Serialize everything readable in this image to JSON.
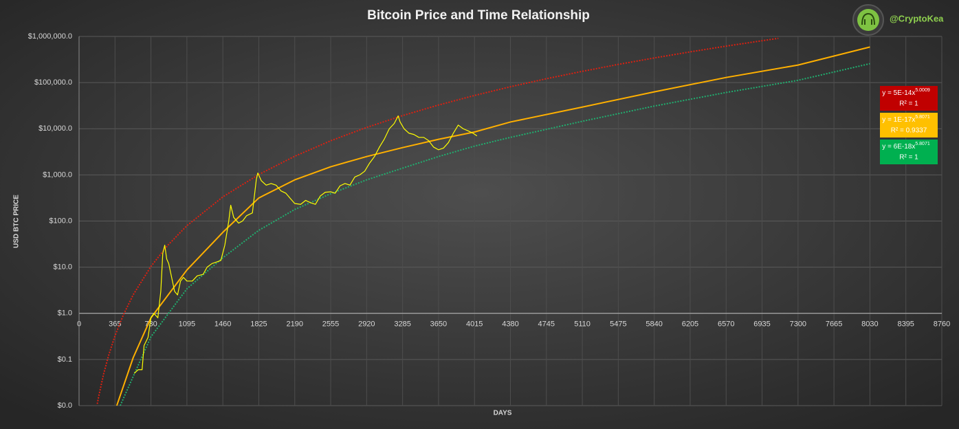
{
  "chart_data": {
    "type": "line",
    "title": "Bitcoin Price and Time Relationship",
    "handle": "@CryptoKea",
    "xlabel": "DAYS",
    "ylabel": "USD BTC PRICE",
    "log_y": true,
    "grid": true,
    "xlim": [
      0,
      8760
    ],
    "xticks": [
      0,
      365,
      730,
      1095,
      1460,
      1825,
      2190,
      2555,
      2920,
      3285,
      3650,
      4015,
      4380,
      4745,
      5110,
      5475,
      5840,
      6205,
      6570,
      6935,
      7300,
      7665,
      8030,
      8395,
      8760
    ],
    "ylim": [
      0.01,
      1000000
    ],
    "yticks": [
      {
        "value": 0.01,
        "label": "$0.0"
      },
      {
        "value": 0.1,
        "label": "$0.1"
      },
      {
        "value": 1,
        "label": "$1.0"
      },
      {
        "value": 10,
        "label": "$10.0"
      },
      {
        "value": 100,
        "label": "$100.0"
      },
      {
        "value": 1000,
        "label": "$1,000.0"
      },
      {
        "value": 10000,
        "label": "$10,000.0"
      },
      {
        "value": 100000,
        "label": "$100,000.0"
      },
      {
        "value": 1000000,
        "label": "$1,000,000.0"
      }
    ],
    "series": [
      {
        "color": "#e02010",
        "dashed": true,
        "width": 2,
        "x": [
          185,
          200,
          250,
          300,
          365,
          450,
          550,
          730,
          900,
          1095,
          1460,
          1825,
          2190,
          2555,
          2920,
          3285,
          3650,
          4015,
          4380,
          4745,
          5110,
          5475,
          5840,
          6205,
          6570,
          6935,
          7100
        ],
        "values": [
          0.0109,
          0.0161,
          0.0491,
          0.122,
          0.326,
          0.927,
          2.53,
          10.4,
          29.7,
          79.3,
          334,
          1019,
          2535,
          5483,
          10690,
          19280,
          32660,
          52600,
          81300,
          121300,
          175400,
          247700,
          342000,
          463000,
          617000,
          807000,
          910000
        ]
      },
      {
        "color": "#ffb000",
        "dashed": false,
        "width": 2,
        "x": [
          383,
          550,
          730,
          1095,
          1460,
          1825,
          2190,
          2555,
          2920,
          3285,
          3650,
          4015,
          4380,
          5110,
          5840,
          6570,
          7300,
          8030
        ],
        "values": [
          0.01,
          0.11,
          0.8,
          8.7,
          57,
          316,
          780,
          1500,
          2500,
          3900,
          5900,
          8500,
          14000,
          29500,
          63000,
          129000,
          240000,
          590000
        ]
      },
      {
        "color": "#20b070",
        "dashed": true,
        "width": 2,
        "x": [
          418,
          550,
          730,
          1095,
          1460,
          1825,
          2190,
          2555,
          2920,
          3285,
          3650,
          4015,
          4380,
          5110,
          5840,
          6570,
          7300,
          8030
        ],
        "values": [
          0.01,
          0.043,
          0.31,
          3.4,
          16,
          63,
          178,
          390,
          780,
          1400,
          2500,
          4200,
          6500,
          14500,
          31000,
          61000,
          112000,
          257000
        ]
      },
      {
        "color": "#ffff00",
        "dashed": false,
        "width": 1.2,
        "x": [
          560,
          600,
          640,
          660,
          700,
          730,
          760,
          800,
          830,
          850,
          870,
          890,
          910,
          940,
          970,
          1000,
          1030,
          1060,
          1095,
          1150,
          1200,
          1260,
          1300,
          1350,
          1400,
          1440,
          1480,
          1520,
          1540,
          1570,
          1620,
          1660,
          1700,
          1760,
          1800,
          1815,
          1850,
          1900,
          1950,
          2000,
          2050,
          2100,
          2150,
          2190,
          2250,
          2300,
          2350,
          2400,
          2450,
          2500,
          2555,
          2600,
          2650,
          2700,
          2750,
          2800,
          2850,
          2900,
          2950,
          3000,
          3050,
          3100,
          3150,
          3200,
          3240,
          3260,
          3300,
          3350,
          3400,
          3450,
          3500,
          3550,
          3600,
          3650,
          3700,
          3750,
          3800,
          3850,
          3900,
          3950,
          4000,
          4040
        ],
        "values": [
          0.05,
          0.06,
          0.06,
          0.2,
          0.3,
          0.8,
          1,
          0.8,
          3,
          20,
          30,
          15,
          12,
          6,
          3,
          2.5,
          5,
          6,
          5,
          5,
          6.5,
          7,
          10,
          12,
          13,
          14,
          30,
          100,
          220,
          120,
          90,
          100,
          130,
          150,
          800,
          1100,
          750,
          600,
          650,
          600,
          450,
          400,
          300,
          240,
          230,
          280,
          250,
          230,
          350,
          420,
          430,
          400,
          580,
          650,
          600,
          900,
          1000,
          1200,
          1800,
          2500,
          4000,
          6000,
          10000,
          13000,
          19000,
          14000,
          10000,
          8000,
          7500,
          6500,
          6500,
          5500,
          4000,
          3500,
          3800,
          5000,
          8000,
          12000,
          10000,
          9000,
          8000,
          7000
        ]
      }
    ],
    "trendlines": [
      {
        "base": "y = 5E-14x",
        "exponent": "5.0009",
        "r2": "R² = 1",
        "color": "#c00000"
      },
      {
        "base": "y = 1E-17x",
        "exponent": "5.8071",
        "r2": "R² = 0.9337",
        "color": "#ffc000"
      },
      {
        "base": "y = 6E-18x",
        "exponent": "5.8071",
        "r2": "R² = 1",
        "color": "#00b050"
      }
    ]
  }
}
